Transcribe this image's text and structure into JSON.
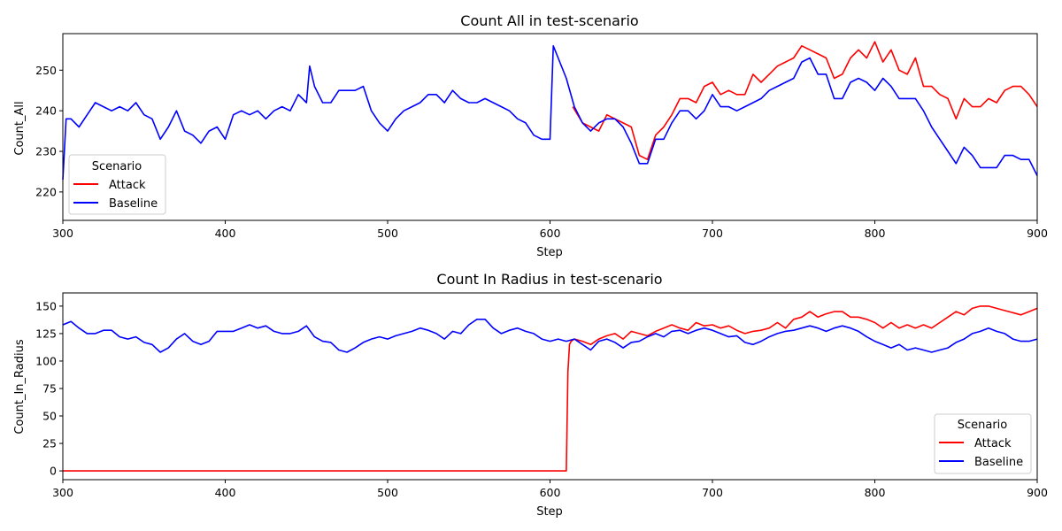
{
  "chart_data": [
    {
      "type": "line",
      "title": "Count All in test-scenario",
      "xlabel": "Step",
      "ylabel": "Count_All",
      "xlim": [
        300,
        900
      ],
      "ylim": [
        213,
        259
      ],
      "xticks": [
        300,
        400,
        500,
        600,
        700,
        800,
        900
      ],
      "yticks": [
        220,
        230,
        240,
        250
      ],
      "grid": false,
      "legend": {
        "title": "Scenario",
        "placement": "lower-left",
        "entries": [
          "Attack",
          "Baseline"
        ]
      },
      "series": [
        {
          "name": "Attack",
          "color": "#ff0000",
          "x": [
            614,
            620,
            625,
            630,
            635,
            640,
            645,
            650,
            655,
            660,
            665,
            670,
            675,
            680,
            685,
            690,
            695,
            700,
            705,
            710,
            715,
            720,
            725,
            730,
            735,
            740,
            745,
            750,
            755,
            760,
            765,
            770,
            775,
            780,
            785,
            790,
            795,
            800,
            805,
            810,
            815,
            820,
            825,
            830,
            835,
            840,
            845,
            850,
            855,
            860,
            865,
            870,
            875,
            880,
            885,
            890,
            895,
            900
          ],
          "y": [
            241,
            237,
            236,
            235,
            239,
            238,
            237,
            236,
            229,
            228,
            234,
            236,
            239,
            243,
            243,
            242,
            246,
            247,
            244,
            245,
            244,
            244,
            249,
            247,
            249,
            251,
            252,
            253,
            256,
            255,
            254,
            253,
            248,
            249,
            253,
            255,
            253,
            257,
            252,
            255,
            250,
            249,
            253,
            246,
            246,
            244,
            243,
            238,
            243,
            241,
            241,
            243,
            242,
            245,
            246,
            246,
            244,
            241
          ]
        },
        {
          "name": "Baseline",
          "color": "#0000ff",
          "x": [
            300,
            302,
            305,
            310,
            315,
            320,
            325,
            330,
            335,
            340,
            345,
            350,
            355,
            360,
            365,
            370,
            375,
            380,
            385,
            390,
            395,
            400,
            405,
            410,
            415,
            420,
            425,
            430,
            435,
            440,
            445,
            450,
            452,
            455,
            460,
            465,
            470,
            475,
            480,
            485,
            490,
            495,
            500,
            505,
            510,
            515,
            520,
            525,
            530,
            535,
            540,
            545,
            550,
            555,
            560,
            565,
            570,
            575,
            580,
            585,
            590,
            595,
            600,
            602,
            605,
            610,
            615,
            620,
            625,
            630,
            635,
            640,
            645,
            650,
            655,
            660,
            665,
            670,
            675,
            680,
            685,
            690,
            695,
            700,
            705,
            710,
            715,
            720,
            725,
            730,
            735,
            740,
            745,
            750,
            755,
            760,
            765,
            770,
            775,
            780,
            785,
            790,
            795,
            800,
            805,
            810,
            815,
            820,
            825,
            830,
            835,
            840,
            845,
            850,
            855,
            860,
            865,
            870,
            875,
            880,
            885,
            890,
            895,
            900
          ],
          "y": [
            223,
            238,
            238,
            236,
            239,
            242,
            241,
            240,
            241,
            240,
            242,
            239,
            238,
            233,
            236,
            240,
            235,
            234,
            232,
            235,
            236,
            233,
            239,
            240,
            239,
            240,
            238,
            240,
            241,
            240,
            244,
            242,
            251,
            246,
            242,
            242,
            245,
            245,
            245,
            246,
            240,
            237,
            235,
            238,
            240,
            241,
            242,
            244,
            244,
            242,
            245,
            243,
            242,
            242,
            243,
            242,
            241,
            240,
            238,
            237,
            234,
            233,
            233,
            256,
            253,
            248,
            241,
            237,
            235,
            237,
            238,
            238,
            236,
            232,
            227,
            227,
            233,
            233,
            237,
            240,
            240,
            238,
            240,
            244,
            241,
            241,
            240,
            241,
            242,
            243,
            245,
            246,
            247,
            248,
            252,
            253,
            249,
            249,
            243,
            243,
            247,
            248,
            247,
            245,
            248,
            246,
            243,
            243,
            243,
            240,
            236,
            233,
            230,
            227,
            231,
            229,
            226,
            226,
            226,
            229,
            229,
            228,
            228,
            224
          ]
        }
      ]
    },
    {
      "type": "line",
      "title": "Count In Radius in test-scenario",
      "xlabel": "Step",
      "ylabel": "Count_In_Radius",
      "xlim": [
        300,
        900
      ],
      "ylim": [
        -8,
        162
      ],
      "xticks": [
        300,
        400,
        500,
        600,
        700,
        800,
        900
      ],
      "yticks": [
        0,
        25,
        50,
        75,
        100,
        125,
        150
      ],
      "grid": false,
      "legend": {
        "title": "Scenario",
        "placement": "lower-right",
        "entries": [
          "Attack",
          "Baseline"
        ]
      },
      "series": [
        {
          "name": "Attack",
          "color": "#ff0000",
          "x": [
            300,
            610,
            611,
            612,
            613,
            615,
            620,
            625,
            630,
            635,
            640,
            645,
            650,
            655,
            660,
            665,
            670,
            675,
            680,
            685,
            690,
            695,
            700,
            705,
            710,
            715,
            720,
            725,
            730,
            735,
            740,
            745,
            750,
            755,
            760,
            765,
            770,
            775,
            780,
            785,
            790,
            795,
            800,
            805,
            810,
            815,
            820,
            825,
            830,
            835,
            840,
            845,
            850,
            855,
            860,
            865,
            870,
            875,
            880,
            885,
            890,
            895,
            900
          ],
          "y": [
            0,
            0,
            90,
            115,
            118,
            120,
            118,
            115,
            120,
            123,
            125,
            120,
            127,
            125,
            123,
            127,
            130,
            133,
            130,
            128,
            135,
            132,
            133,
            130,
            132,
            128,
            125,
            127,
            128,
            130,
            135,
            130,
            138,
            140,
            145,
            140,
            143,
            145,
            145,
            140,
            140,
            138,
            135,
            130,
            135,
            130,
            133,
            130,
            133,
            130,
            135,
            140,
            145,
            142,
            148,
            150,
            150,
            148,
            146,
            144,
            142,
            145,
            148
          ]
        },
        {
          "name": "Baseline",
          "color": "#0000ff",
          "x": [
            300,
            305,
            310,
            315,
            320,
            325,
            330,
            335,
            340,
            345,
            350,
            355,
            360,
            365,
            370,
            375,
            380,
            385,
            390,
            395,
            400,
            405,
            410,
            415,
            420,
            425,
            430,
            435,
            440,
            445,
            450,
            455,
            460,
            465,
            470,
            475,
            480,
            485,
            490,
            495,
            500,
            505,
            510,
            515,
            520,
            525,
            530,
            535,
            540,
            545,
            550,
            555,
            560,
            565,
            570,
            575,
            580,
            585,
            590,
            595,
            600,
            605,
            610,
            615,
            620,
            625,
            630,
            635,
            640,
            645,
            650,
            655,
            660,
            665,
            670,
            675,
            680,
            685,
            690,
            695,
            700,
            705,
            710,
            715,
            720,
            725,
            730,
            735,
            740,
            745,
            750,
            755,
            760,
            765,
            770,
            775,
            780,
            785,
            790,
            795,
            800,
            805,
            810,
            815,
            820,
            825,
            830,
            835,
            840,
            845,
            850,
            855,
            860,
            865,
            870,
            875,
            880,
            885,
            890,
            895,
            900
          ],
          "y": [
            133,
            136,
            130,
            125,
            125,
            128,
            128,
            122,
            120,
            122,
            117,
            115,
            108,
            112,
            120,
            125,
            118,
            115,
            118,
            127,
            127,
            127,
            130,
            133,
            130,
            132,
            127,
            125,
            125,
            127,
            132,
            122,
            118,
            117,
            110,
            108,
            112,
            117,
            120,
            122,
            120,
            123,
            125,
            127,
            130,
            128,
            125,
            120,
            127,
            125,
            133,
            138,
            138,
            130,
            125,
            128,
            130,
            127,
            125,
            120,
            118,
            120,
            118,
            120,
            115,
            110,
            118,
            120,
            117,
            112,
            117,
            118,
            122,
            125,
            122,
            127,
            128,
            125,
            128,
            130,
            128,
            125,
            122,
            123,
            117,
            115,
            118,
            122,
            125,
            127,
            128,
            130,
            132,
            130,
            127,
            130,
            132,
            130,
            127,
            122,
            118,
            115,
            112,
            115,
            110,
            112,
            110,
            108,
            110,
            112,
            117,
            120,
            125,
            127,
            130,
            127,
            125,
            120,
            118,
            118,
            120
          ]
        }
      ]
    }
  ]
}
